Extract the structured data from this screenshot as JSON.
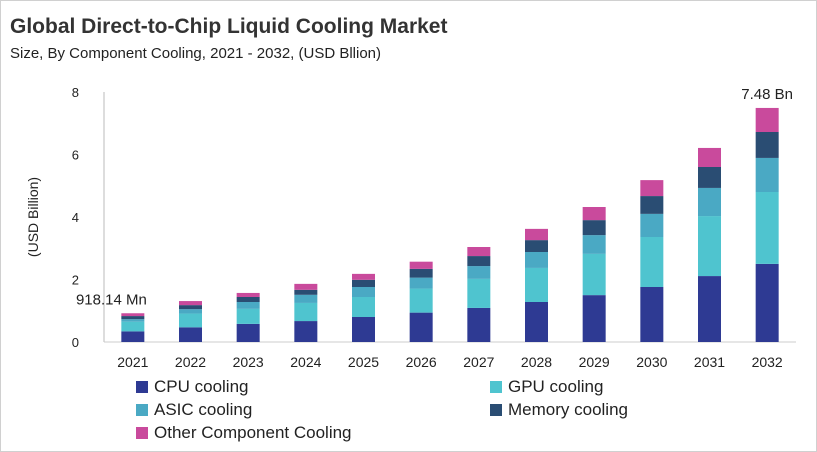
{
  "title": "Global Direct-to-Chip Liquid Cooling Market",
  "subtitle": "Size, By Component Cooling, 2021 - 2032, (USD Bllion)",
  "chart_data": {
    "type": "bar",
    "stacked": true,
    "ylabel": "(USD Billion)",
    "xlabel": "",
    "ylim": [
      0,
      8
    ],
    "yticks": [
      "0",
      "2",
      "4",
      "6",
      "8"
    ],
    "grid": false,
    "legend": "bottom",
    "categories": [
      "2021",
      "2022",
      "2023",
      "2024",
      "2025",
      "2026",
      "2027",
      "2028",
      "2029",
      "2030",
      "2031",
      "2032"
    ],
    "series": [
      {
        "name": "CPU cooling",
        "color": "#2e3a93",
        "values": [
          0.34,
          0.47,
          0.58,
          0.67,
          0.8,
          0.94,
          1.09,
          1.28,
          1.5,
          1.76,
          2.11,
          2.5
        ]
      },
      {
        "name": "GPU cooling",
        "color": "#4fc4cf",
        "values": [
          0.31,
          0.44,
          0.48,
          0.58,
          0.64,
          0.77,
          0.93,
          1.09,
          1.32,
          1.6,
          1.92,
          2.3
        ]
      },
      {
        "name": "ASIC cooling",
        "color": "#4aa9c4",
        "values": [
          0.08,
          0.14,
          0.22,
          0.26,
          0.32,
          0.35,
          0.41,
          0.51,
          0.6,
          0.74,
          0.9,
          1.09
        ]
      },
      {
        "name": "Memory cooling",
        "color": "#2a4d73",
        "values": [
          0.1,
          0.13,
          0.16,
          0.16,
          0.23,
          0.28,
          0.32,
          0.38,
          0.48,
          0.57,
          0.67,
          0.83
        ]
      },
      {
        "name": "Other Component Cooling",
        "color": "#c94a9c",
        "values": [
          0.09,
          0.13,
          0.13,
          0.19,
          0.19,
          0.23,
          0.29,
          0.36,
          0.42,
          0.51,
          0.61,
          0.77
        ]
      }
    ],
    "annotations": [
      {
        "category": "2021",
        "text": "918.14 Mn"
      },
      {
        "category": "2032",
        "text": "7.48 Bn"
      }
    ]
  }
}
